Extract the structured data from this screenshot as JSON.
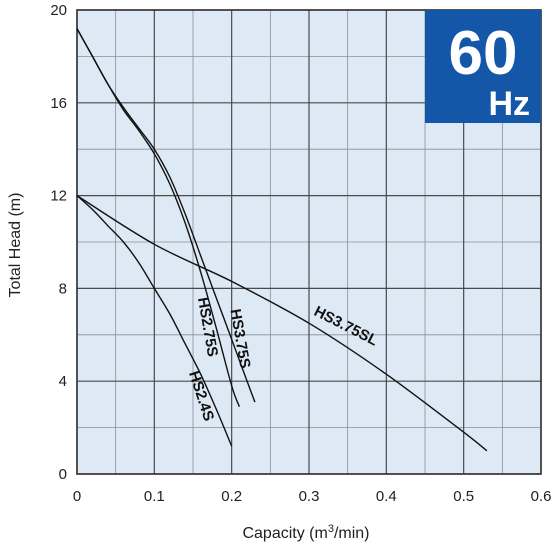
{
  "chart_data": {
    "type": "line",
    "xlabel": "Capacity (m",
    "xlabel_sup": "3",
    "xlabel_suffix": "/min)",
    "ylabel": "Total Head (m)",
    "xlim": [
      0,
      0.6
    ],
    "ylim": [
      0,
      20
    ],
    "x_ticks": [
      0,
      0.1,
      0.2,
      0.3,
      0.4,
      0.5,
      0.6
    ],
    "x_tick_labels": [
      "0",
      "0.1",
      "0.2",
      "0.3",
      "0.4",
      "0.5",
      "0.6"
    ],
    "y_ticks": [
      0,
      4,
      8,
      12,
      16,
      20
    ],
    "y_tick_labels": [
      "0",
      "4",
      "8",
      "12",
      "16",
      "20"
    ],
    "grid": true,
    "plot_background": "#dde9f4",
    "grid_color": "#4a4a4a",
    "line_color": "#111111",
    "badge": {
      "frequency": "60",
      "unit": "Hz",
      "color": "#1457a8"
    },
    "series": [
      {
        "name": "HS2.4S",
        "x": [
          0,
          0.02,
          0.04,
          0.06,
          0.08,
          0.1,
          0.12,
          0.14,
          0.16,
          0.18,
          0.2
        ],
        "y": [
          12,
          11.4,
          10.7,
          10.0,
          9.1,
          8.0,
          6.9,
          5.6,
          4.3,
          2.8,
          1.2
        ]
      },
      {
        "name": "HS2.75S",
        "x": [
          0,
          0.02,
          0.04,
          0.06,
          0.08,
          0.1,
          0.12,
          0.14,
          0.16,
          0.18,
          0.2,
          0.21
        ],
        "y": [
          19.2,
          18.0,
          16.8,
          15.7,
          14.8,
          13.8,
          12.5,
          10.8,
          8.7,
          6.3,
          3.8,
          2.9
        ]
      },
      {
        "name": "HS3.75S",
        "x": [
          0,
          0.02,
          0.04,
          0.06,
          0.08,
          0.1,
          0.12,
          0.14,
          0.16,
          0.18,
          0.2,
          0.22,
          0.23
        ],
        "y": [
          19.2,
          18.0,
          16.8,
          15.8,
          14.9,
          14.0,
          12.8,
          11.2,
          9.4,
          7.6,
          5.8,
          4.0,
          3.1
        ]
      },
      {
        "name": "HS3.75SL",
        "x": [
          0,
          0.1,
          0.2,
          0.3,
          0.4,
          0.5,
          0.53
        ],
        "y": [
          12,
          9.9,
          8.3,
          6.5,
          4.3,
          1.8,
          1.0
        ]
      }
    ]
  }
}
